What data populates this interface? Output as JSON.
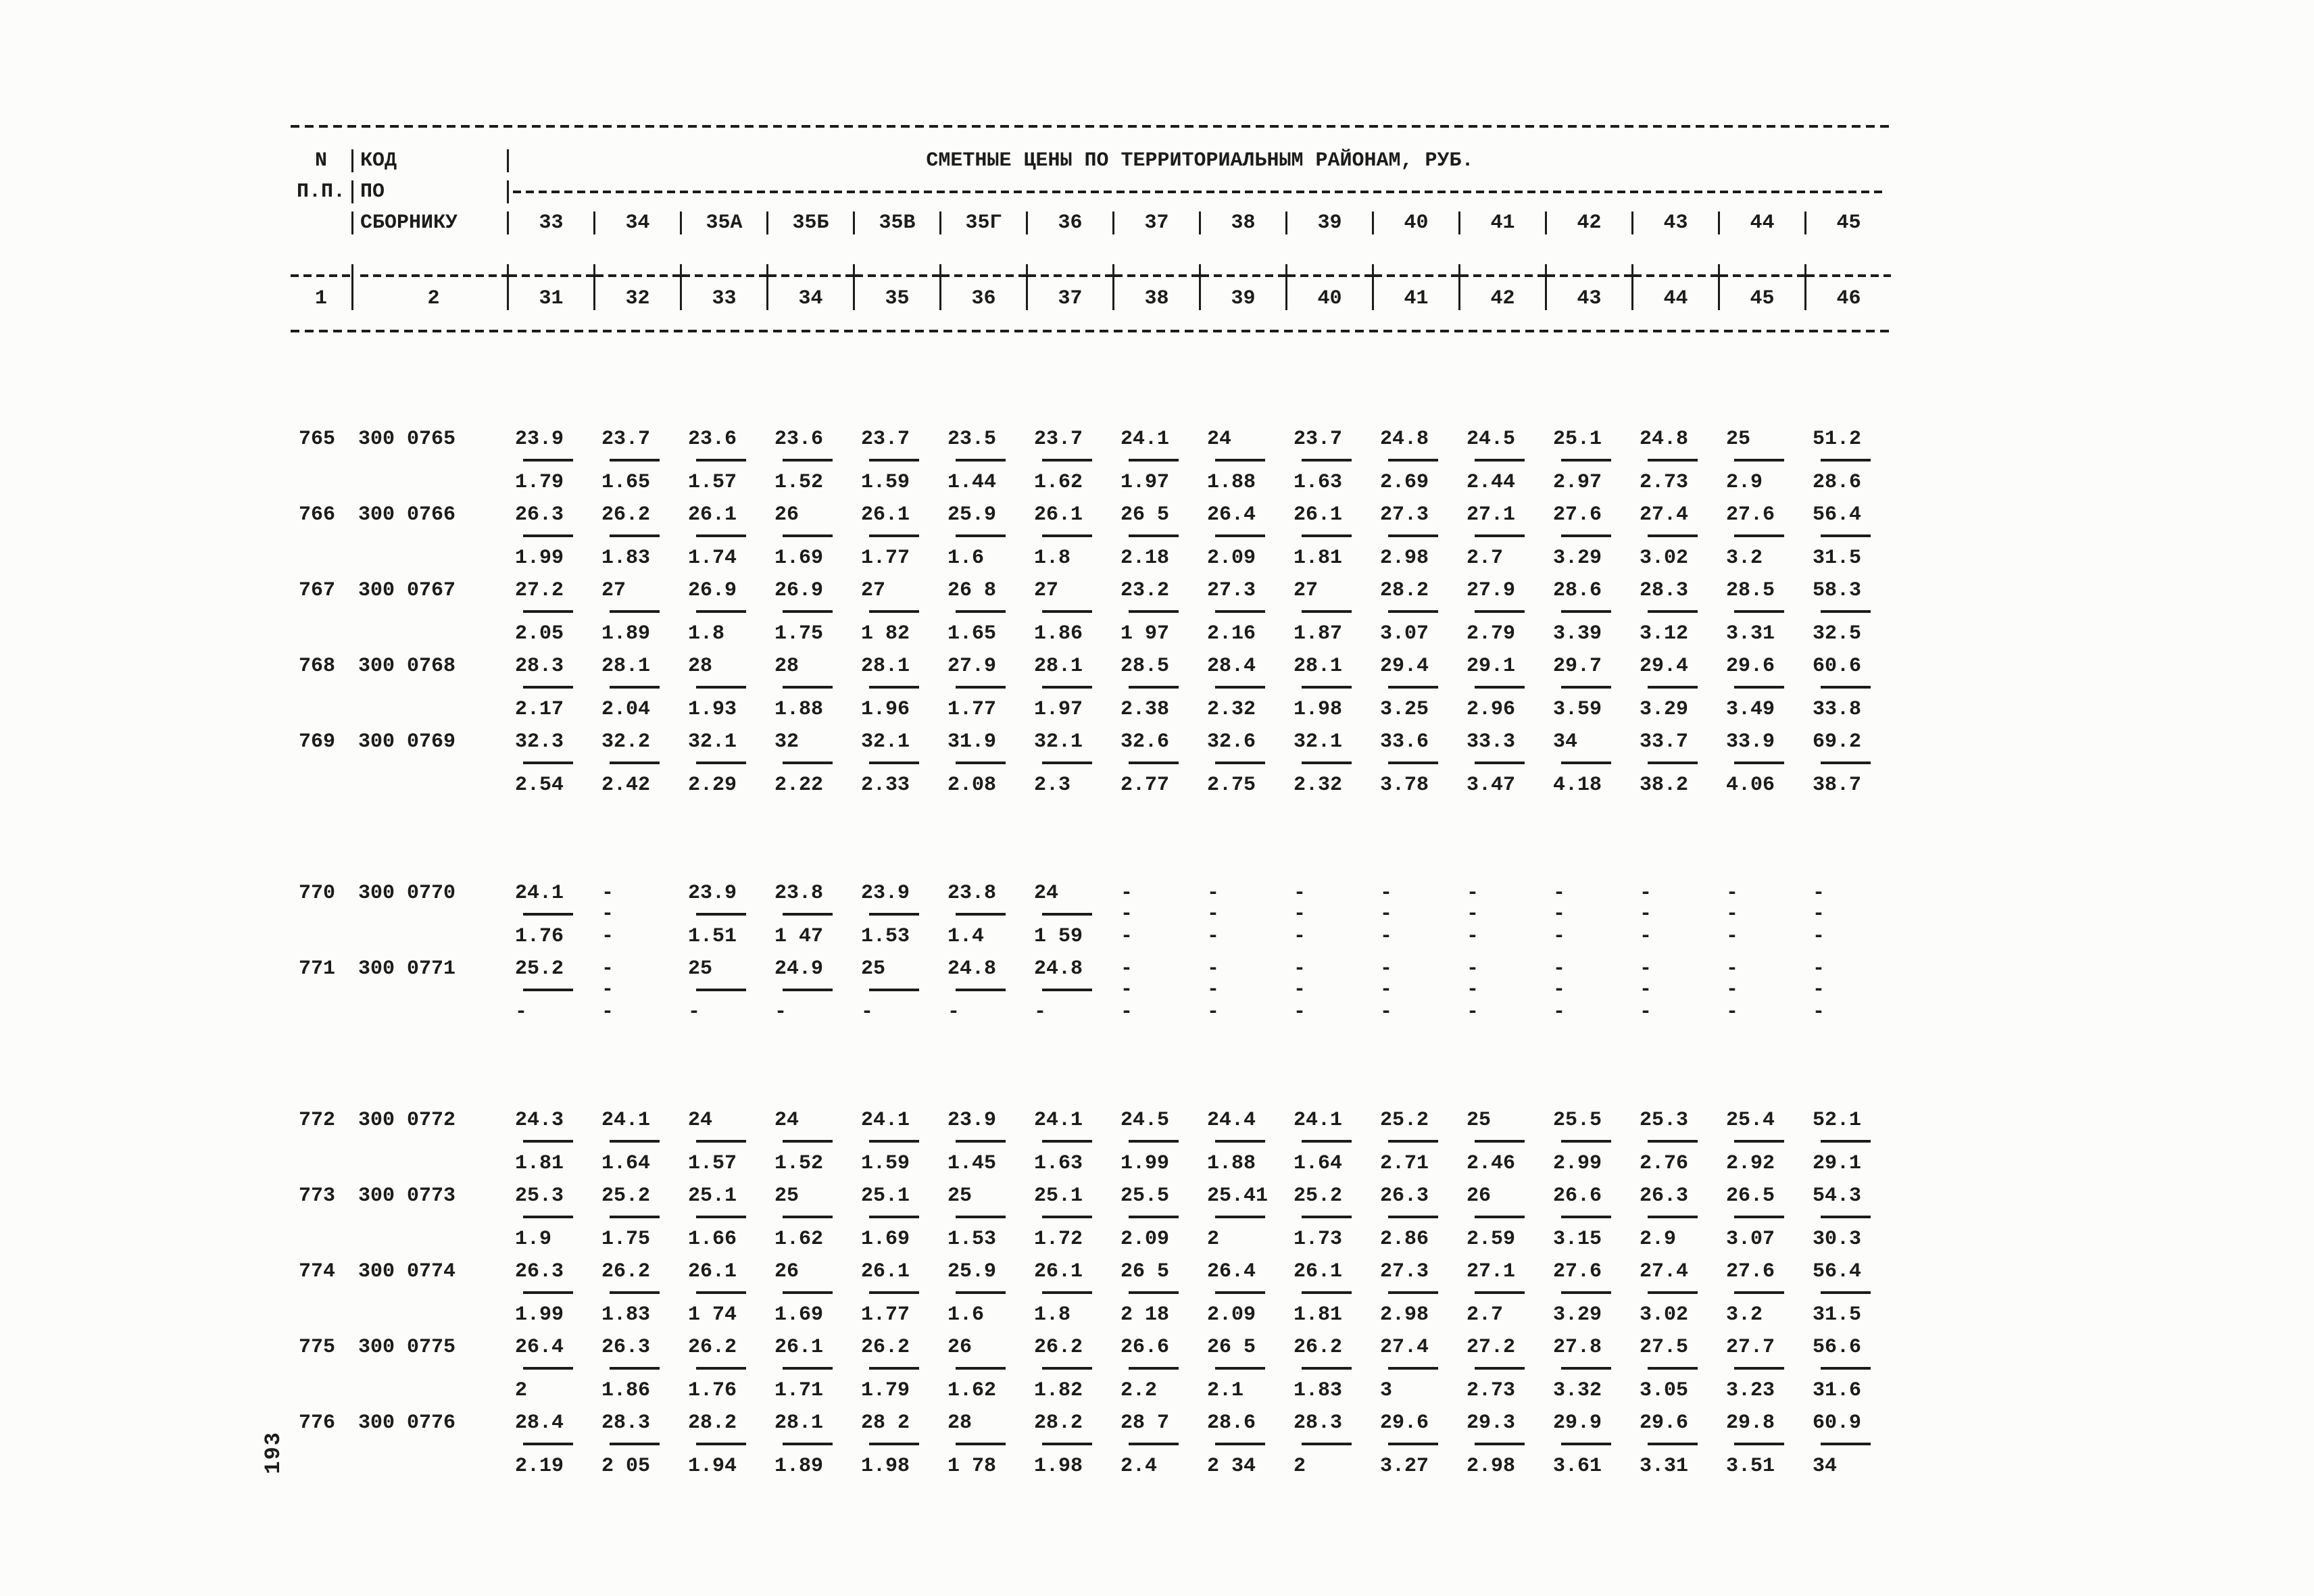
{
  "page_number": "193",
  "table": {
    "title": "СМЕТНЫЕ ЦЕНЫ ПО ТЕРРИТОРИАЛЬНЫМ РАЙОНАМ, РУБ.",
    "col_n": [
      "N",
      "П.П."
    ],
    "col_code": [
      "КОД",
      "ПО",
      "СБОРНИКУ"
    ],
    "districts": [
      "33",
      "34",
      "35А",
      "35Б",
      "35В",
      "35Г",
      "36",
      "37",
      "38",
      "39",
      "40",
      "41",
      "42",
      "43",
      "44",
      "45"
    ],
    "index_row": [
      "1",
      "2",
      "31",
      "32",
      "33",
      "34",
      "35",
      "36",
      "37",
      "38",
      "39",
      "40",
      "41",
      "42",
      "43",
      "44",
      "45",
      "46"
    ],
    "groups": [
      {
        "rows": [
          {
            "n": "765",
            "code": "300 0765",
            "top": [
              "23.9",
              "23.7",
              "23.6",
              "23.6",
              "23.7",
              "23.5",
              "23.7",
              "24.1",
              "24",
              "23.7",
              "24.8",
              "24.5",
              "25.1",
              "24.8",
              "25",
              "51.2"
            ],
            "bottom": [
              "1.79",
              "1.65",
              "1.57",
              "1.52",
              "1.59",
              "1.44",
              "1.62",
              "1.97",
              "1.88",
              "1.63",
              "2.69",
              "2.44",
              "2.97",
              "2.73",
              "2.9",
              "28.6"
            ]
          },
          {
            "n": "766",
            "code": "300 0766",
            "top": [
              "26.3",
              "26.2",
              "26.1",
              "26",
              "26.1",
              "25.9",
              "26.1",
              "26 5",
              "26.4",
              "26.1",
              "27.3",
              "27.1",
              "27.6",
              "27.4",
              "27.6",
              "56.4"
            ],
            "bottom": [
              "1.99",
              "1.83",
              "1.74",
              "1.69",
              "1.77",
              "1.6",
              "1.8",
              "2.18",
              "2.09",
              "1.81",
              "2.98",
              "2.7",
              "3.29",
              "3.02",
              "3.2",
              "31.5"
            ]
          },
          {
            "n": "767",
            "code": "300 0767",
            "top": [
              "27.2",
              "27",
              "26.9",
              "26.9",
              "27",
              "26 8",
              "27",
              "23.2",
              "27.3",
              "27",
              "28.2",
              "27.9",
              "28.6",
              "28.3",
              "28.5",
              "58.3"
            ],
            "bottom": [
              "2.05",
              "1.89",
              "1.8",
              "1.75",
              "1 82",
              "1.65",
              "1.86",
              "1 97",
              "2.16",
              "1.87",
              "3.07",
              "2.79",
              "3.39",
              "3.12",
              "3.31",
              "32.5"
            ]
          },
          {
            "n": "768",
            "code": "300 0768",
            "top": [
              "28.3",
              "28.1",
              "28",
              "28",
              "28.1",
              "27.9",
              "28.1",
              "28.5",
              "28.4",
              "28.1",
              "29.4",
              "29.1",
              "29.7",
              "29.4",
              "29.6",
              "60.6"
            ],
            "bottom": [
              "2.17",
              "2.04",
              "1.93",
              "1.88",
              "1.96",
              "1.77",
              "1.97",
              "2.38",
              "2.32",
              "1.98",
              "3.25",
              "2.96",
              "3.59",
              "3.29",
              "3.49",
              "33.8"
            ]
          },
          {
            "n": "769",
            "code": "300 0769",
            "top": [
              "32.3",
              "32.2",
              "32.1",
              "32",
              "32.1",
              "31.9",
              "32.1",
              "32.6",
              "32.6",
              "32.1",
              "33.6",
              "33.3",
              "34",
              "33.7",
              "33.9",
              "69.2"
            ],
            "bottom": [
              "2.54",
              "2.42",
              "2.29",
              "2.22",
              "2.33",
              "2.08",
              "2.3",
              "2.77",
              "2.75",
              "2.32",
              "3.78",
              "3.47",
              "4.18",
              "38.2",
              "4.06",
              "38.7"
            ]
          }
        ]
      },
      {
        "rows": [
          {
            "n": "770",
            "code": "300 0770",
            "top": [
              "24.1",
              "-",
              "23.9",
              "23.8",
              "23.9",
              "23.8",
              "24",
              "-",
              "-",
              "-",
              "-",
              "-",
              "-",
              "-",
              "-",
              "-"
            ],
            "bottom": [
              "1.76",
              "-",
              "1.51",
              "1 47",
              "1.53",
              "1.4",
              "1 59",
              "-",
              "-",
              "-",
              "-",
              "-",
              "-",
              "-",
              "-",
              "-"
            ]
          },
          {
            "n": "771",
            "code": "300 0771",
            "top": [
              "25.2",
              "-",
              "25",
              "24.9",
              "25",
              "24.8",
              "24.8",
              "-",
              "-",
              "-",
              "-",
              "-",
              "-",
              "-",
              "-",
              "-"
            ],
            "bottom": [
              "-",
              "-",
              "-",
              "-",
              "-",
              "-",
              "-",
              "-",
              "-",
              "-",
              "-",
              "-",
              "-",
              "-",
              "-",
              "-"
            ]
          }
        ]
      },
      {
        "rows": [
          {
            "n": "772",
            "code": "300 0772",
            "top": [
              "24.3",
              "24.1",
              "24",
              "24",
              "24.1",
              "23.9",
              "24.1",
              "24.5",
              "24.4",
              "24.1",
              "25.2",
              "25",
              "25.5",
              "25.3",
              "25.4",
              "52.1"
            ],
            "bottom": [
              "1.81",
              "1.64",
              "1.57",
              "1.52",
              "1.59",
              "1.45",
              "1.63",
              "1.99",
              "1.88",
              "1.64",
              "2.71",
              "2.46",
              "2.99",
              "2.76",
              "2.92",
              "29.1"
            ]
          },
          {
            "n": "773",
            "code": "300 0773",
            "top": [
              "25.3",
              "25.2",
              "25.1",
              "25",
              "25.1",
              "25",
              "25.1",
              "25.5",
              "25.41",
              "25.2",
              "26.3",
              "26",
              "26.6",
              "26.3",
              "26.5",
              "54.3"
            ],
            "bottom": [
              "1.9",
              "1.75",
              "1.66",
              "1.62",
              "1.69",
              "1.53",
              "1.72",
              "2.09",
              "2",
              "1.73",
              "2.86",
              "2.59",
              "3.15",
              "2.9",
              "3.07",
              "30.3"
            ]
          },
          {
            "n": "774",
            "code": "300 0774",
            "top": [
              "26.3",
              "26.2",
              "26.1",
              "26",
              "26.1",
              "25.9",
              "26.1",
              "26 5",
              "26.4",
              "26.1",
              "27.3",
              "27.1",
              "27.6",
              "27.4",
              "27.6",
              "56.4"
            ],
            "bottom": [
              "1.99",
              "1.83",
              "1 74",
              "1.69",
              "1.77",
              "1.6",
              "1.8",
              "2 18",
              "2.09",
              "1.81",
              "2.98",
              "2.7",
              "3.29",
              "3.02",
              "3.2",
              "31.5"
            ]
          },
          {
            "n": "775",
            "code": "300 0775",
            "top": [
              "26.4",
              "26.3",
              "26.2",
              "26.1",
              "26.2",
              "26",
              "26.2",
              "26.6",
              "26 5",
              "26.2",
              "27.4",
              "27.2",
              "27.8",
              "27.5",
              "27.7",
              "56.6"
            ],
            "bottom": [
              "2",
              "1.86",
              "1.76",
              "1.71",
              "1.79",
              "1.62",
              "1.82",
              "2.2",
              "2.1",
              "1.83",
              "3",
              "2.73",
              "3.32",
              "3.05",
              "3.23",
              "31.6"
            ]
          },
          {
            "n": "776",
            "code": "300 0776",
            "top": [
              "28.4",
              "28.3",
              "28.2",
              "28.1",
              "28 2",
              "28",
              "28.2",
              "28 7",
              "28.6",
              "28.3",
              "29.6",
              "29.3",
              "29.9",
              "29.6",
              "29.8",
              "60.9"
            ],
            "bottom": [
              "2.19",
              "2 05",
              "1.94",
              "1.89",
              "1.98",
              "1 78",
              "1.98",
              "2.4",
              "2 34",
              "2",
              "3.27",
              "2.98",
              "3.61",
              "3.31",
              "3.51",
              "34"
            ]
          }
        ]
      }
    ]
  }
}
